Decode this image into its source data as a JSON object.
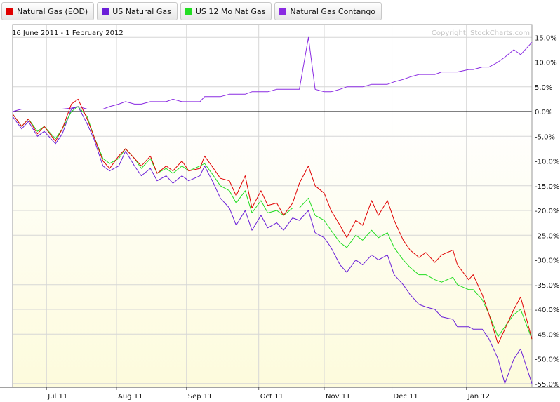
{
  "chart_data": {
    "type": "line",
    "title": "",
    "subtitle": "16 June 2011 - 1 February 2012",
    "watermark": "Copyright, StockCharts.com",
    "xlabel": "",
    "ylabel": "",
    "y_unit": "%",
    "ylim": [
      -56,
      16.5
    ],
    "grid": true,
    "legend_position": "top-left",
    "x_ticks": [
      {
        "label": "Jul 11",
        "date": "2011-07-01"
      },
      {
        "label": "Aug 11",
        "date": "2011-08-01"
      },
      {
        "label": "Sep 11",
        "date": "2011-09-01"
      },
      {
        "label": "Oct 11",
        "date": "2011-10-03"
      },
      {
        "label": "Nov 11",
        "date": "2011-11-01"
      },
      {
        "label": "Dec 11",
        "date": "2011-12-01"
      },
      {
        "label": "Jan 12",
        "date": "2012-01-03"
      }
    ],
    "y_ticks": [
      15,
      10,
      5,
      0,
      -5,
      -10,
      -15,
      -20,
      -25,
      -30,
      -35,
      -40,
      -45,
      -50,
      -55
    ],
    "y_tick_labels": [
      "15.0%",
      "10.0%",
      "5.0%",
      "0.0%",
      "-5.0%",
      "-10.0%",
      "-15.0%",
      "-20.0%",
      "-25.0%",
      "-30.0%",
      "-35.0%",
      "-40.0%",
      "-45.0%",
      "-50.0%",
      "-55.0%"
    ],
    "x": [
      "2011-06-16",
      "2011-06-20",
      "2011-06-23",
      "2011-06-27",
      "2011-06-30",
      "2011-07-05",
      "2011-07-08",
      "2011-07-12",
      "2011-07-15",
      "2011-07-19",
      "2011-07-22",
      "2011-07-26",
      "2011-07-29",
      "2011-08-02",
      "2011-08-05",
      "2011-08-09",
      "2011-08-12",
      "2011-08-16",
      "2011-08-19",
      "2011-08-23",
      "2011-08-26",
      "2011-08-30",
      "2011-09-02",
      "2011-09-07",
      "2011-09-09",
      "2011-09-13",
      "2011-09-16",
      "2011-09-20",
      "2011-09-23",
      "2011-09-27",
      "2011-09-30",
      "2011-10-04",
      "2011-10-07",
      "2011-10-11",
      "2011-10-14",
      "2011-10-18",
      "2011-10-21",
      "2011-10-25",
      "2011-10-28",
      "2011-11-01",
      "2011-11-04",
      "2011-11-08",
      "2011-11-11",
      "2011-11-15",
      "2011-11-18",
      "2011-11-22",
      "2011-11-25",
      "2011-11-29",
      "2011-12-02",
      "2011-12-06",
      "2011-12-09",
      "2011-12-13",
      "2011-12-16",
      "2011-12-20",
      "2011-12-23",
      "2011-12-28",
      "2011-12-30",
      "2012-01-04",
      "2012-01-06",
      "2012-01-10",
      "2012-01-13",
      "2012-01-17",
      "2012-01-20",
      "2012-01-24",
      "2012-01-27",
      "2012-02-01"
    ],
    "series": [
      {
        "name": "Natural Gas (EOD)",
        "color": "#e00000",
        "values": [
          -0.5,
          -3,
          -1.5,
          -4.5,
          -3,
          -6,
          -3.5,
          1.5,
          2.5,
          -1.5,
          -5,
          -10,
          -11.5,
          -9,
          -7.5,
          -9.5,
          -11,
          -9,
          -12.5,
          -11,
          -12,
          -10,
          -12,
          -11.5,
          -9,
          -11.5,
          -13.5,
          -14,
          -17,
          -13,
          -19.5,
          -16,
          -19,
          -18.5,
          -21,
          -18.5,
          -14.5,
          -11,
          -15,
          -16.5,
          -20,
          -23,
          -25.5,
          -22,
          -23,
          -18,
          -21,
          -18,
          -22,
          -26,
          -28,
          -29.5,
          -28.5,
          -30.5,
          -29,
          -28,
          -31,
          -34,
          -33,
          -37,
          -41,
          -47,
          -44,
          -40,
          -37.5,
          -46
        ]
      },
      {
        "name": "US Natural Gas",
        "color": "#6a1fd8",
        "values": [
          -1,
          -3.5,
          -2,
          -5,
          -4,
          -6.5,
          -4.5,
          0.5,
          1,
          -2.5,
          -5.5,
          -11,
          -12,
          -11,
          -8,
          -11,
          -13,
          -11.5,
          -14,
          -13,
          -14.5,
          -13,
          -14,
          -13,
          -11,
          -14.5,
          -17.5,
          -19.5,
          -23,
          -20,
          -24,
          -21,
          -23.5,
          -22.5,
          -24,
          -21.5,
          -22,
          -20,
          -24.5,
          -25.5,
          -27.5,
          -31,
          -32.5,
          -30,
          -31,
          -29,
          -30,
          -29,
          -33,
          -35,
          -37,
          -39,
          -39.5,
          -40,
          -41.5,
          -42,
          -43.5,
          -43.5,
          -44,
          -44,
          -46,
          -50,
          -55,
          -50,
          -48,
          -55
        ]
      },
      {
        "name": "US 12 Mo Nat Gas",
        "color": "#22dd22",
        "values": [
          -0.5,
          -3,
          -1.5,
          -4,
          -3,
          -5.5,
          -3.5,
          0,
          1,
          -1,
          -5,
          -9.5,
          -10.5,
          -9.5,
          -7.5,
          -9.5,
          -11.5,
          -9.5,
          -12.5,
          -11.5,
          -12.5,
          -11,
          -12,
          -11,
          -10.5,
          -13,
          -15,
          -16,
          -18.5,
          -16,
          -20.5,
          -18,
          -20.5,
          -20,
          -21,
          -19.5,
          -19.5,
          -17.5,
          -21,
          -22,
          -24,
          -26.5,
          -27.5,
          -25,
          -26,
          -24,
          -25.5,
          -24.5,
          -27.5,
          -30,
          -31.5,
          -33,
          -33,
          -34,
          -34.5,
          -33.5,
          -35,
          -36,
          -36,
          -38,
          -41,
          -45.5,
          -43.5,
          -41,
          -40,
          -46
        ]
      },
      {
        "name": "Natural Gas Contango",
        "color": "#8a2be2",
        "values": [
          0,
          0.5,
          0.5,
          0.5,
          0.5,
          0.5,
          0.5,
          0.7,
          1,
          0.5,
          0.5,
          0.5,
          1,
          1.5,
          2,
          1.5,
          1.5,
          2,
          2,
          2,
          2.5,
          2,
          2,
          2,
          3,
          3,
          3,
          3.5,
          3.5,
          3.5,
          4,
          4,
          4,
          4.5,
          4.5,
          4.5,
          4.5,
          15,
          4.5,
          4,
          4,
          4.5,
          5,
          5,
          5,
          5.5,
          5.5,
          5.5,
          6,
          6.5,
          7,
          7.5,
          7.5,
          7.5,
          8,
          8,
          8,
          8.5,
          8.5,
          9,
          9,
          10,
          11,
          12.5,
          11.5,
          14
        ]
      }
    ]
  }
}
